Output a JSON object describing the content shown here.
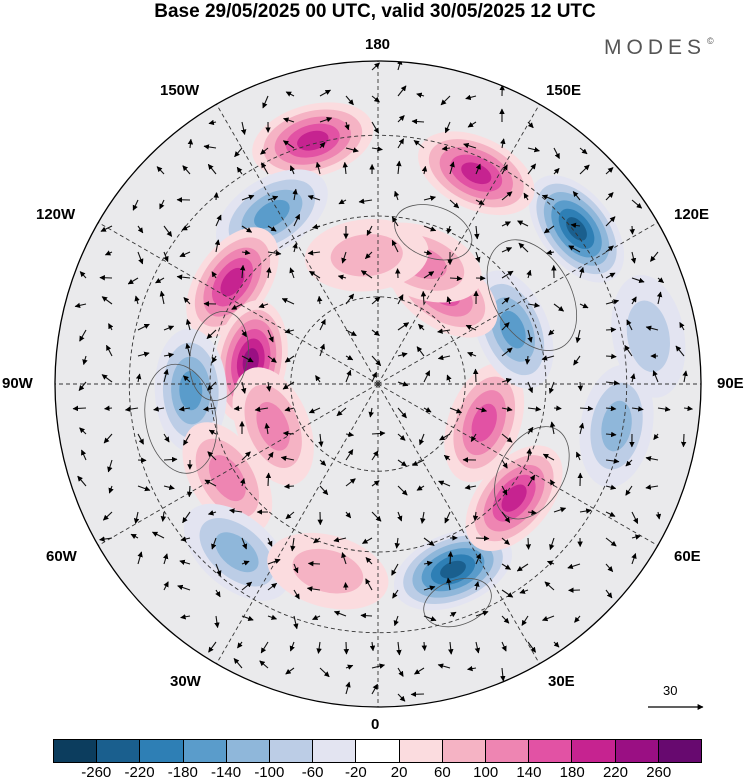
{
  "title": "Base 29/05/2025 00 UTC, valid 30/05/2025 12 UTC",
  "brand": "MODES",
  "brand_mark": "©",
  "longitude_labels": {
    "top": "180",
    "bottom": "0",
    "left": "90W",
    "right": "90E",
    "upper_left": "150W",
    "upper_right": "150E",
    "mid_upper_left": "120W",
    "mid_upper_right": "120E",
    "mid_lower_left": "60W",
    "mid_lower_right": "60E",
    "lower_left": "30W",
    "lower_right": "30E"
  },
  "reference_vector": {
    "label": "30"
  },
  "colorbar": {
    "colors": [
      "#0c3d5e",
      "#1a5f8e",
      "#2e7fb5",
      "#5a9ccb",
      "#8fb7da",
      "#bccde6",
      "#e3e4f1",
      "#ffffff",
      "#fbdcdf",
      "#f5b3c4",
      "#ee85b2",
      "#e252a4",
      "#c62390",
      "#9a0f83",
      "#67096f"
    ],
    "ticks": [
      "-260",
      "-220",
      "-180",
      "-140",
      "-100",
      "-60",
      "-20",
      "20",
      "60",
      "100",
      "140",
      "180",
      "220",
      "260"
    ]
  },
  "anomaly_features": [
    {
      "sign": "positive",
      "level": 4,
      "lon": -165,
      "dist": 0.78
    },
    {
      "sign": "negative",
      "level": 3,
      "lon": -148,
      "dist": 0.62
    },
    {
      "sign": "positive",
      "level": 4,
      "lon": -125,
      "dist": 0.55
    },
    {
      "sign": "positive",
      "level": 5,
      "lon": -100,
      "dist": 0.4
    },
    {
      "sign": "negative",
      "level": 3,
      "lon": -88,
      "dist": 0.58
    },
    {
      "sign": "positive",
      "level": 2,
      "lon": -58,
      "dist": 0.55
    },
    {
      "sign": "positive",
      "level": 2,
      "lon": -68,
      "dist": 0.35
    },
    {
      "sign": "negative",
      "level": 2,
      "lon": -40,
      "dist": 0.68
    },
    {
      "sign": "positive",
      "level": 1,
      "lon": -15,
      "dist": 0.6
    },
    {
      "sign": "negative",
      "level": 5,
      "lon": 22,
      "dist": 0.62
    },
    {
      "sign": "positive",
      "level": 4,
      "lon": 50,
      "dist": 0.55
    },
    {
      "sign": "positive",
      "level": 3,
      "lon": 70,
      "dist": 0.35
    },
    {
      "sign": "negative",
      "level": 2,
      "lon": 80,
      "dist": 0.75
    },
    {
      "sign": "negative",
      "level": 3,
      "lon": 112,
      "dist": 0.45
    },
    {
      "sign": "positive",
      "level": 3,
      "lon": 145,
      "dist": 0.35
    },
    {
      "sign": "positive",
      "level": 2,
      "lon": 160,
      "dist": 0.4
    },
    {
      "sign": "negative",
      "level": 5,
      "lon": 128,
      "dist": 0.78
    },
    {
      "sign": "positive",
      "level": 4,
      "lon": 155,
      "dist": 0.72
    },
    {
      "sign": "negative",
      "level": 1,
      "lon": 100,
      "dist": 0.85
    },
    {
      "sign": "positive",
      "level": 1,
      "lon": -175,
      "dist": 0.4
    }
  ]
}
